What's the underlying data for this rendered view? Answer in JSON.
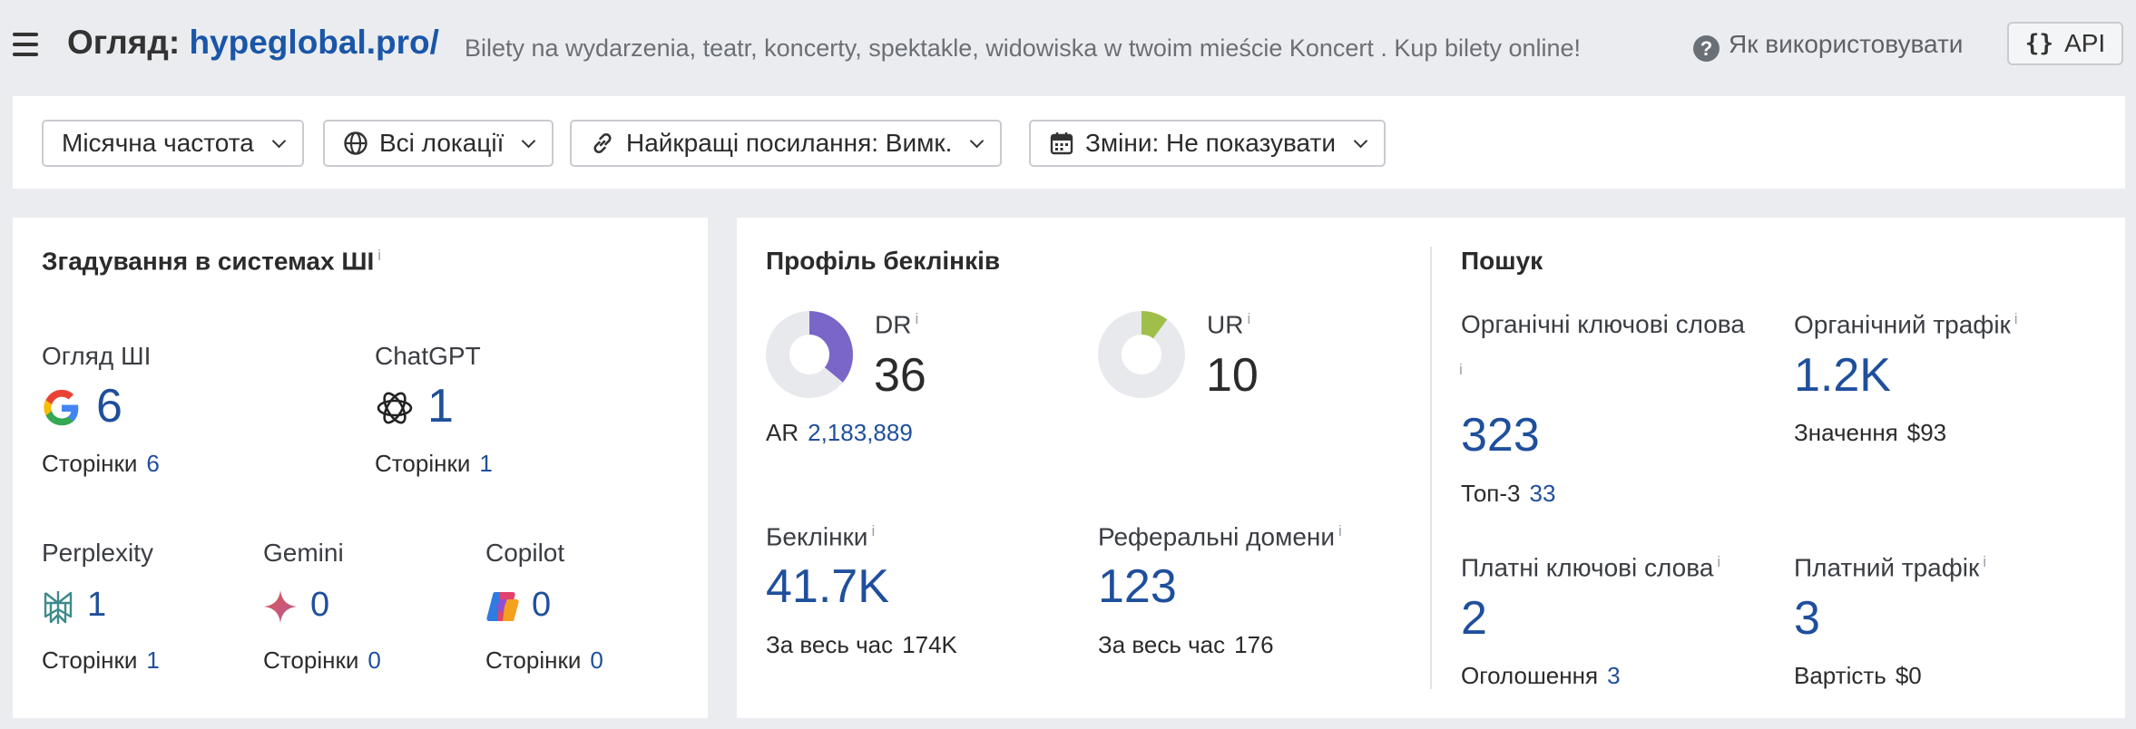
{
  "header": {
    "title_prefix": "Огляд:",
    "domain": "hypeglobal.pro/",
    "description": "Bilety na wydarzenia, teatr, koncerty, spektakle, widowiska w twoim mieście Koncert . Kup bilety online!",
    "howto_label": "Як використовувати",
    "api_label": "API"
  },
  "filters": [
    {
      "label": "Місячна частота",
      "icon": "none"
    },
    {
      "label": "Всі локації",
      "icon": "globe-icon"
    },
    {
      "label": "Найкращі посилання: Вимк.",
      "icon": "link-icon"
    },
    {
      "label": "Зміни: Не показувати",
      "icon": "calendar-icon"
    }
  ],
  "ai": {
    "title": "Згадування в системах ШІ",
    "pages_label": "Сторінки",
    "items": [
      {
        "name": "Огляд ШІ",
        "icon": "google-icon",
        "value": "6",
        "pages": "6"
      },
      {
        "name": "ChatGPT",
        "icon": "chatgpt-icon",
        "value": "1",
        "pages": "1"
      },
      {
        "name": "Perplexity",
        "icon": "perplexity-icon",
        "value": "1",
        "pages": "1"
      },
      {
        "name": "Gemini",
        "icon": "gemini-icon",
        "value": "0",
        "pages": "0"
      },
      {
        "name": "Copilot",
        "icon": "copilot-icon",
        "value": "0",
        "pages": "0"
      }
    ]
  },
  "backlinks": {
    "title": "Профіль беклінків",
    "dr_label": "DR",
    "dr_value": "36",
    "dr_fraction": 0.36,
    "dr_color": "#7a66c9",
    "ar_label": "AR",
    "ar_value": "2,183,889",
    "ur_label": "UR",
    "ur_value": "10",
    "ur_fraction": 0.1,
    "ur_color": "#9fbf4a",
    "backlinks_label": "Беклінки",
    "backlinks_value": "41.7K",
    "backlinks_all_label": "За весь час",
    "backlinks_all_value": "174K",
    "refdomains_label": "Реферальні домени",
    "refdomains_value": "123",
    "refdomains_all_label": "За весь час",
    "refdomains_all_value": "176"
  },
  "search": {
    "title": "Пошук",
    "organic_kw_label": "Органічні ключові слова",
    "organic_kw_value": "323",
    "top3_label": "Топ-3",
    "top3_value": "33",
    "organic_traffic_label": "Органічний трафік",
    "organic_traffic_value": "1.2K",
    "value_label": "Значення",
    "value_value": "$93",
    "paid_kw_label": "Платні ключові слова",
    "paid_kw_value": "2",
    "ads_label": "Оголошення",
    "ads_value": "3",
    "paid_traffic_label": "Платний трафік",
    "paid_traffic_value": "3",
    "cost_label": "Вартість",
    "cost_value": "$0"
  },
  "colors": {
    "accent": "#1a56a8",
    "metric_blue": "#1f4f9c",
    "donut_track": "#e8e9ec"
  }
}
